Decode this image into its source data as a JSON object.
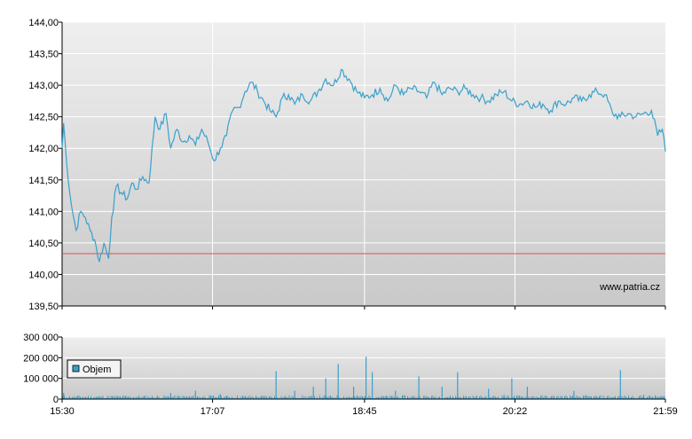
{
  "watermark": "www.patria.cz",
  "colors": {
    "price_line": "#3aa0cc",
    "reference_line": "#e05050",
    "grid": "#ffffff",
    "plot_bg_top": "#efefef",
    "plot_bg_bottom": "#c9c9c9",
    "volume_bar": "#3aa0cc"
  },
  "chart_data": [
    {
      "type": "line",
      "title": "",
      "xlabel": "",
      "ylabel": "",
      "ylim": [
        139.5,
        144.0
      ],
      "yticks": [
        "144,00",
        "143,50",
        "143,00",
        "142,50",
        "142,00",
        "141,50",
        "141,00",
        "140,50",
        "140,00",
        "139,50"
      ],
      "reference_value": 140.33,
      "grid": true,
      "series": [
        {
          "values_time_price": [
            [
              "15:30",
              142.0
            ],
            [
              "15:31",
              142.4
            ],
            [
              "15:33",
              141.75
            ],
            [
              "15:36",
              141.1
            ],
            [
              "15:39",
              140.7
            ],
            [
              "15:42",
              141.0
            ],
            [
              "15:45",
              140.9
            ],
            [
              "15:48",
              140.7
            ],
            [
              "15:51",
              140.55
            ],
            [
              "15:54",
              140.2
            ],
            [
              "15:57",
              140.5
            ],
            [
              "16:00",
              140.25
            ],
            [
              "16:02",
              140.9
            ],
            [
              "16:05",
              141.4
            ],
            [
              "16:08",
              141.3
            ],
            [
              "16:12",
              141.2
            ],
            [
              "16:15",
              141.45
            ],
            [
              "16:18",
              141.35
            ],
            [
              "16:22",
              141.55
            ],
            [
              "16:26",
              141.45
            ],
            [
              "16:30",
              142.5
            ],
            [
              "16:33",
              142.3
            ],
            [
              "16:37",
              142.55
            ],
            [
              "16:40",
              142.0
            ],
            [
              "16:44",
              142.3
            ],
            [
              "16:48",
              142.1
            ],
            [
              "16:52",
              142.2
            ],
            [
              "16:56",
              142.05
            ],
            [
              "17:00",
              142.3
            ],
            [
              "17:04",
              142.1
            ],
            [
              "17:08",
              141.8
            ],
            [
              "17:12",
              142.0
            ],
            [
              "17:16",
              142.2
            ],
            [
              "17:20",
              142.6
            ],
            [
              "17:24",
              142.65
            ],
            [
              "17:28",
              142.9
            ],
            [
              "17:32",
              143.05
            ],
            [
              "17:36",
              142.9
            ],
            [
              "17:40",
              142.75
            ],
            [
              "17:44",
              142.6
            ],
            [
              "17:48",
              142.5
            ],
            [
              "17:52",
              142.8
            ],
            [
              "17:56",
              142.85
            ],
            [
              "18:00",
              142.7
            ],
            [
              "18:05",
              142.85
            ],
            [
              "18:10",
              142.75
            ],
            [
              "18:15",
              142.9
            ],
            [
              "18:20",
              143.1
            ],
            [
              "18:25",
              143.0
            ],
            [
              "18:30",
              143.25
            ],
            [
              "18:35",
              143.1
            ],
            [
              "18:40",
              142.9
            ],
            [
              "18:45",
              142.8
            ],
            [
              "18:50",
              142.85
            ],
            [
              "18:55",
              142.95
            ],
            [
              "19:00",
              142.75
            ],
            [
              "19:05",
              143.0
            ],
            [
              "19:10",
              142.85
            ],
            [
              "19:15",
              142.95
            ],
            [
              "19:20",
              142.9
            ],
            [
              "19:25",
              142.8
            ],
            [
              "19:30",
              143.05
            ],
            [
              "19:35",
              142.85
            ],
            [
              "19:40",
              142.95
            ],
            [
              "19:45",
              142.9
            ],
            [
              "19:50",
              142.95
            ],
            [
              "19:55",
              142.85
            ],
            [
              "20:00",
              142.8
            ],
            [
              "20:05",
              142.75
            ],
            [
              "20:10",
              142.85
            ],
            [
              "20:15",
              142.9
            ],
            [
              "20:20",
              142.75
            ],
            [
              "20:25",
              142.7
            ],
            [
              "20:30",
              142.75
            ],
            [
              "20:35",
              142.65
            ],
            [
              "20:40",
              142.7
            ],
            [
              "20:45",
              142.6
            ],
            [
              "20:50",
              142.75
            ],
            [
              "20:55",
              142.7
            ],
            [
              "21:00",
              142.8
            ],
            [
              "21:05",
              142.75
            ],
            [
              "21:10",
              142.85
            ],
            [
              "21:15",
              142.9
            ],
            [
              "21:20",
              142.85
            ],
            [
              "21:25",
              142.55
            ],
            [
              "21:30",
              142.5
            ],
            [
              "21:35",
              142.55
            ],
            [
              "21:40",
              142.5
            ],
            [
              "21:45",
              142.55
            ],
            [
              "21:50",
              142.6
            ],
            [
              "21:54",
              142.2
            ],
            [
              "21:57",
              142.3
            ],
            [
              "21:59",
              141.95
            ]
          ]
        }
      ]
    },
    {
      "type": "bar",
      "title": "",
      "xlabel": "",
      "ylabel": "",
      "ylim": [
        0,
        300000
      ],
      "yticks": [
        "300 000",
        "200 000",
        "100 000",
        "0"
      ],
      "xticks": [
        "15:30",
        "17:07",
        "18:45",
        "20:22",
        "21:59"
      ],
      "legend": {
        "label": "Objem",
        "placement": "top-left"
      },
      "grid": true,
      "series": [
        {
          "name": "Objem",
          "spikes_time_volume": [
            [
              "15:31",
              30000
            ],
            [
              "16:40",
              30000
            ],
            [
              "16:56",
              40000
            ],
            [
              "17:12",
              25000
            ],
            [
              "17:48",
              135000
            ],
            [
              "18:00",
              40000
            ],
            [
              "18:12",
              60000
            ],
            [
              "18:20",
              100000
            ],
            [
              "18:28",
              170000
            ],
            [
              "18:38",
              60000
            ],
            [
              "18:46",
              205000
            ],
            [
              "18:50",
              130000
            ],
            [
              "19:05",
              40000
            ],
            [
              "19:20",
              110000
            ],
            [
              "19:35",
              60000
            ],
            [
              "19:45",
              130000
            ],
            [
              "20:05",
              50000
            ],
            [
              "20:15",
              20000
            ],
            [
              "20:20",
              100000
            ],
            [
              "20:30",
              60000
            ],
            [
              "21:00",
              40000
            ],
            [
              "21:30",
              140000
            ],
            [
              "21:45",
              20000
            ]
          ],
          "baseline_volume": 12000
        }
      ]
    }
  ]
}
